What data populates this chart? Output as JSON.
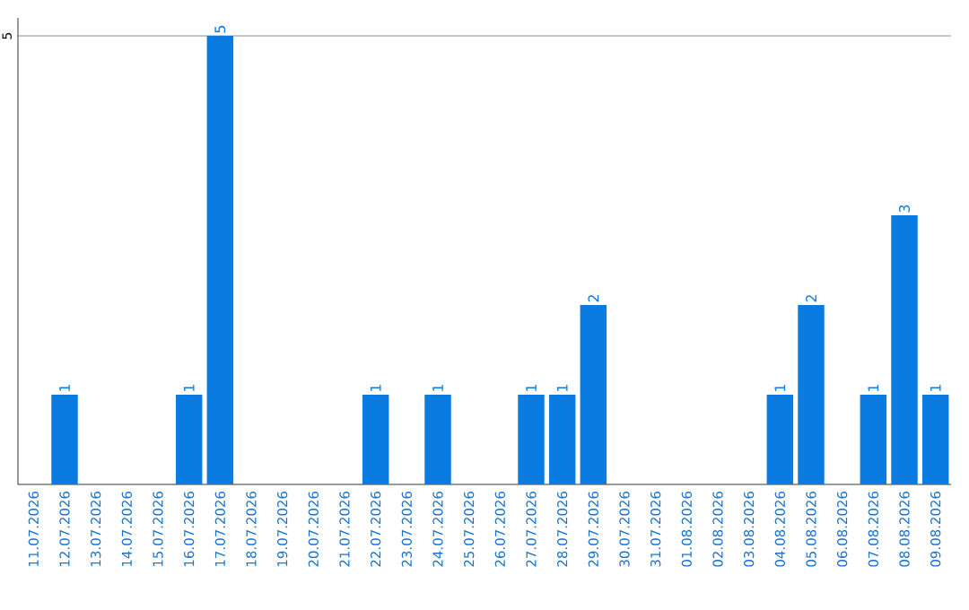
{
  "chart_data": {
    "type": "bar",
    "categories": [
      "11.07.2026",
      "12.07.2026",
      "13.07.2026",
      "14.07.2026",
      "15.07.2026",
      "16.07.2026",
      "17.07.2026",
      "18.07.2026",
      "19.07.2026",
      "20.07.2026",
      "21.07.2026",
      "22.07.2026",
      "23.07.2026",
      "24.07.2026",
      "25.07.2026",
      "26.07.2026",
      "27.07.2026",
      "28.07.2026",
      "29.07.2026",
      "30.07.2026",
      "31.07.2026",
      "01.08.2026",
      "02.08.2026",
      "03.08.2026",
      "04.08.2026",
      "05.08.2026",
      "06.08.2026",
      "07.08.2026",
      "08.08.2026",
      "09.08.2026"
    ],
    "values": [
      0,
      1,
      0,
      0,
      0,
      1,
      5,
      0,
      0,
      0,
      0,
      1,
      0,
      1,
      0,
      0,
      1,
      1,
      2,
      0,
      0,
      0,
      0,
      0,
      1,
      2,
      0,
      1,
      3,
      1
    ],
    "value_labels": [
      null,
      "1",
      null,
      null,
      null,
      "1",
      "5",
      null,
      null,
      null,
      null,
      "1",
      null,
      "1",
      null,
      null,
      "1",
      "1",
      "2",
      null,
      null,
      null,
      null,
      null,
      "1",
      "2",
      null,
      "1",
      "3",
      "1"
    ],
    "color": "#0a7be0",
    "ylim": [
      0,
      5.2
    ],
    "yticks": [
      5
    ],
    "grid": "y"
  }
}
